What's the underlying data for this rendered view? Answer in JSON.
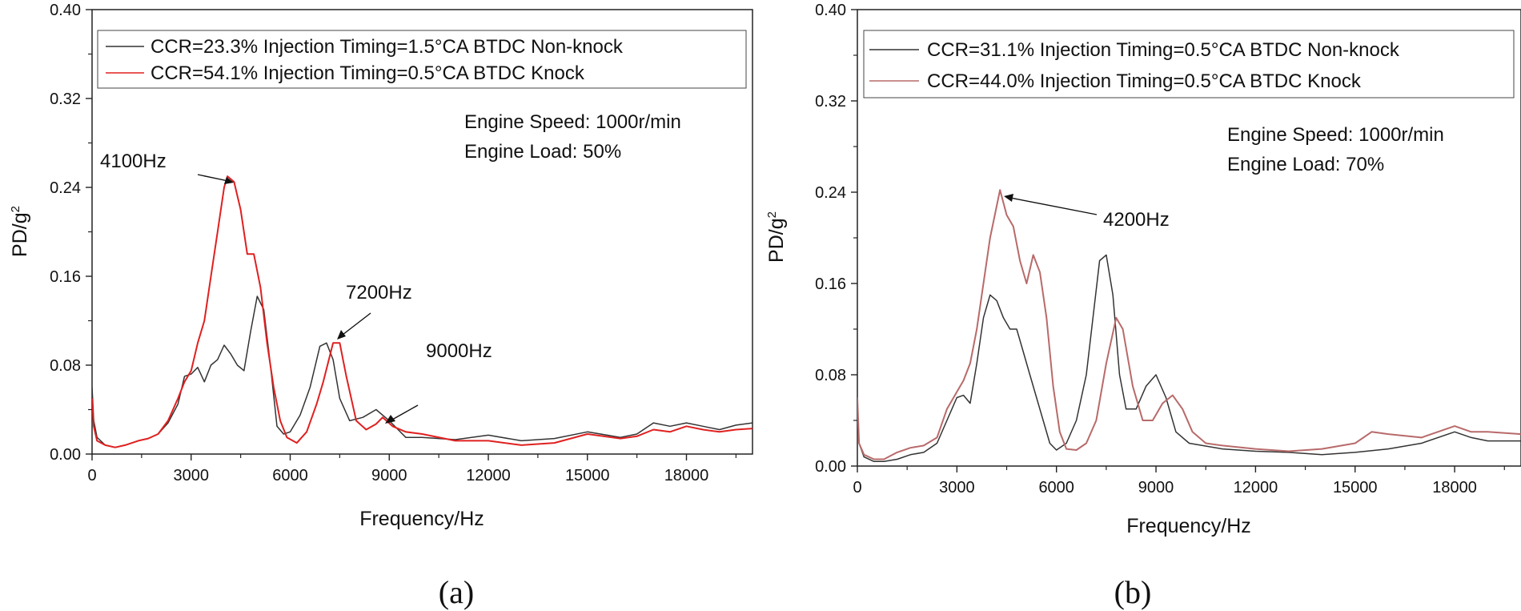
{
  "chart_data": [
    {
      "type": "line",
      "panel_label": "(a)",
      "xlabel": "Frequency/Hz",
      "ylabel": "PD/g",
      "ylabel_superscript": "2",
      "xlim": [
        0,
        20000
      ],
      "ylim": [
        0,
        0.4
      ],
      "xticks": [
        0,
        3000,
        6000,
        9000,
        12000,
        15000,
        18000
      ],
      "yticks": [
        0.0,
        0.08,
        0.16,
        0.24,
        0.32,
        0.4
      ],
      "ytick_labels": [
        "0.00",
        "0.08",
        "0.16",
        "0.24",
        "0.32",
        "0.40"
      ],
      "legend": [
        {
          "label": "CCR=23.3%  Injection Timing=1.5°CA BTDC Non-knock",
          "color": "#333333"
        },
        {
          "label": "CCR=54.1%  Injection Timing=0.5°CA BTDC Knock",
          "color": "#e02020"
        }
      ],
      "info": [
        "Engine Speed: 1000r/min",
        "Engine Load: 50%"
      ],
      "annotations": [
        {
          "text": "4100Hz",
          "points_to": [
            4100,
            0.248
          ]
        },
        {
          "text": "7200Hz",
          "points_to": [
            7400,
            0.102
          ]
        },
        {
          "text": "9000Hz",
          "points_to": [
            8800,
            0.033
          ]
        }
      ],
      "series": [
        {
          "name": "CCR=23.3%  Injection Timing=1.5°CA BTDC Non-knock",
          "color": "#333333",
          "x": [
            0,
            50,
            150,
            400,
            700,
            1000,
            1400,
            1700,
            2000,
            2300,
            2600,
            2800,
            3000,
            3200,
            3400,
            3600,
            3800,
            4000,
            4200,
            4400,
            4600,
            4800,
            5000,
            5200,
            5400,
            5600,
            5800,
            6000,
            6300,
            6600,
            6900,
            7100,
            7300,
            7500,
            7800,
            8200,
            8600,
            9000,
            9500,
            10000,
            11000,
            12000,
            13000,
            14000,
            15000,
            16000,
            16500,
            17000,
            17500,
            18000,
            18500,
            19000,
            19500,
            20000
          ],
          "y": [
            0.06,
            0.03,
            0.015,
            0.008,
            0.006,
            0.008,
            0.012,
            0.014,
            0.018,
            0.028,
            0.045,
            0.07,
            0.072,
            0.078,
            0.065,
            0.08,
            0.085,
            0.098,
            0.09,
            0.08,
            0.075,
            0.11,
            0.142,
            0.13,
            0.08,
            0.025,
            0.018,
            0.02,
            0.035,
            0.06,
            0.097,
            0.1,
            0.085,
            0.05,
            0.03,
            0.033,
            0.04,
            0.03,
            0.015,
            0.015,
            0.013,
            0.017,
            0.012,
            0.014,
            0.02,
            0.015,
            0.018,
            0.028,
            0.025,
            0.028,
            0.025,
            0.022,
            0.026,
            0.028
          ]
        },
        {
          "name": "CCR=54.1%  Injection Timing=0.5°CA BTDC Knock",
          "color": "#e02020",
          "x": [
            0,
            50,
            150,
            400,
            700,
            1000,
            1400,
            1700,
            2000,
            2300,
            2600,
            2800,
            3000,
            3200,
            3400,
            3600,
            3800,
            4000,
            4100,
            4300,
            4500,
            4700,
            4900,
            5100,
            5300,
            5500,
            5700,
            5900,
            6200,
            6500,
            6800,
            7000,
            7300,
            7500,
            7700,
            8000,
            8300,
            8600,
            8800,
            9100,
            9500,
            10000,
            11000,
            12000,
            13000,
            14000,
            15000,
            16000,
            16500,
            17000,
            17500,
            18000,
            18500,
            19000,
            19500,
            20000
          ],
          "y": [
            0.05,
            0.025,
            0.012,
            0.008,
            0.006,
            0.008,
            0.012,
            0.014,
            0.018,
            0.03,
            0.05,
            0.065,
            0.075,
            0.1,
            0.12,
            0.16,
            0.2,
            0.24,
            0.25,
            0.245,
            0.22,
            0.18,
            0.18,
            0.15,
            0.1,
            0.06,
            0.03,
            0.015,
            0.01,
            0.02,
            0.045,
            0.065,
            0.1,
            0.1,
            0.07,
            0.03,
            0.022,
            0.027,
            0.033,
            0.025,
            0.02,
            0.018,
            0.012,
            0.012,
            0.008,
            0.01,
            0.018,
            0.014,
            0.016,
            0.022,
            0.02,
            0.025,
            0.022,
            0.02,
            0.022,
            0.023
          ]
        }
      ]
    },
    {
      "type": "line",
      "panel_label": "(b)",
      "xlabel": "Frequency/Hz",
      "ylabel": "PD/g",
      "ylabel_superscript": "2",
      "xlim": [
        0,
        20000
      ],
      "ylim": [
        0,
        0.4
      ],
      "xticks": [
        0,
        3000,
        6000,
        9000,
        12000,
        15000,
        18000
      ],
      "yticks": [
        0.0,
        0.08,
        0.16,
        0.24,
        0.32,
        0.4
      ],
      "ytick_labels": [
        "0.00",
        "0.08",
        "0.16",
        "0.24",
        "0.32",
        "0.40"
      ],
      "legend": [
        {
          "label": "CCR=31.1% Injection Timing=0.5°CA BTDC Non-knock",
          "color": "#333333"
        },
        {
          "label": "CCR=44.0% Injection Timing=0.5°CA BTDC Knock",
          "color": "#b86a6a"
        }
      ],
      "info": [
        "Engine Speed: 1000r/min",
        "Engine Load: 70%"
      ],
      "annotations": [
        {
          "text": "4200Hz",
          "points_to": [
            4300,
            0.242
          ]
        }
      ],
      "series": [
        {
          "name": "CCR=31.1% Injection Timing=0.5°CA BTDC Non-knock",
          "color": "#333333",
          "x": [
            0,
            50,
            200,
            500,
            800,
            1200,
            1600,
            2000,
            2400,
            2700,
            3000,
            3200,
            3400,
            3600,
            3800,
            4000,
            4200,
            4400,
            4600,
            4800,
            5000,
            5200,
            5400,
            5600,
            5800,
            6000,
            6300,
            6600,
            6900,
            7100,
            7300,
            7500,
            7700,
            7900,
            8100,
            8400,
            8700,
            9000,
            9300,
            9600,
            10000,
            11000,
            12000,
            13000,
            14000,
            15000,
            16000,
            17000,
            18000,
            18500,
            19000,
            20000
          ],
          "y": [
            0.05,
            0.02,
            0.008,
            0.004,
            0.004,
            0.006,
            0.01,
            0.012,
            0.02,
            0.04,
            0.06,
            0.062,
            0.055,
            0.09,
            0.13,
            0.15,
            0.145,
            0.13,
            0.12,
            0.12,
            0.1,
            0.08,
            0.06,
            0.04,
            0.02,
            0.014,
            0.02,
            0.04,
            0.08,
            0.13,
            0.18,
            0.185,
            0.15,
            0.08,
            0.05,
            0.05,
            0.07,
            0.08,
            0.06,
            0.03,
            0.02,
            0.015,
            0.013,
            0.012,
            0.01,
            0.012,
            0.015,
            0.02,
            0.03,
            0.025,
            0.022,
            0.022
          ]
        },
        {
          "name": "CCR=44.0% Injection Timing=0.5°CA BTDC Knock",
          "color": "#b86a6a",
          "x": [
            0,
            50,
            200,
            500,
            800,
            1200,
            1600,
            2000,
            2400,
            2700,
            3000,
            3200,
            3400,
            3600,
            3800,
            4000,
            4300,
            4500,
            4700,
            4900,
            5100,
            5300,
            5500,
            5700,
            5900,
            6100,
            6300,
            6600,
            6900,
            7200,
            7500,
            7800,
            8000,
            8300,
            8600,
            8900,
            9200,
            9500,
            9800,
            10100,
            10500,
            11000,
            12000,
            13000,
            14000,
            15000,
            15500,
            16000,
            17000,
            18000,
            18500,
            19000,
            20000
          ],
          "y": [
            0.06,
            0.02,
            0.01,
            0.006,
            0.006,
            0.012,
            0.016,
            0.018,
            0.025,
            0.05,
            0.065,
            0.075,
            0.09,
            0.12,
            0.16,
            0.2,
            0.242,
            0.22,
            0.21,
            0.18,
            0.16,
            0.185,
            0.17,
            0.13,
            0.07,
            0.03,
            0.015,
            0.014,
            0.02,
            0.04,
            0.09,
            0.13,
            0.12,
            0.07,
            0.04,
            0.04,
            0.055,
            0.062,
            0.05,
            0.03,
            0.02,
            0.018,
            0.015,
            0.013,
            0.015,
            0.02,
            0.03,
            0.028,
            0.025,
            0.035,
            0.03,
            0.03,
            0.028
          ]
        }
      ]
    }
  ]
}
